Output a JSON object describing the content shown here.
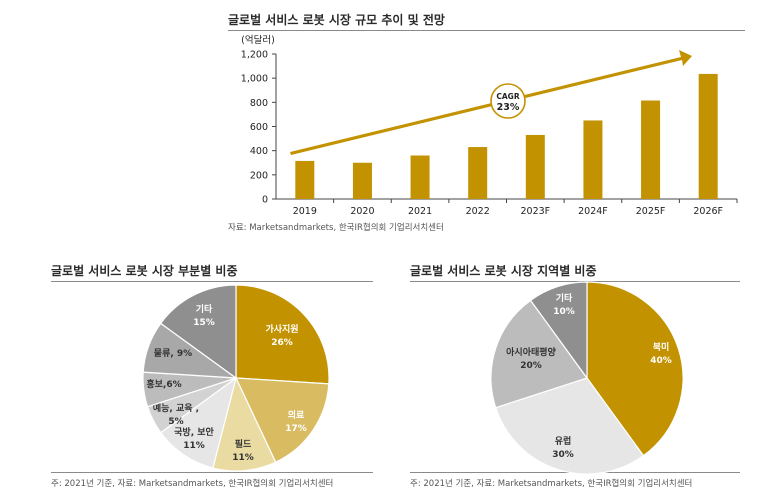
{
  "titles": {
    "top": "글로벌 서비스 로봇 시장 규모 추이 및 전망",
    "left": "글로벌 서비스 로봇 시장 부분별 비중",
    "right": "글로벌 서비스 로봇 시장 지역별 비중"
  },
  "sources": {
    "top": "자료: Marketsandmarkets, 한국IR협의회 기업리서치센터",
    "left": "주: 2021년 기준, 자료: Marketsandmarkets, 한국IR협의회 기업리서치센터",
    "right": "주: 2021년 기준, 자료: Marketsandmarkets, 한국IR협의회 기업리서치센터"
  },
  "colors": {
    "gold": "#c39200",
    "lightgold": "#d9bb61",
    "cream": "#eadba3",
    "lightgray": "#e6e6e6",
    "gray1": "#d2d2d2",
    "gray2": "#bcbcbc",
    "gray3": "#a8a8a8",
    "gray4": "#8f8f8f"
  },
  "chart_data": [
    {
      "type": "bar",
      "title": "글로벌 서비스 로봇 시장 규모 추이 및 전망",
      "ylabel": "(억달러)",
      "categories": [
        "2019",
        "2020",
        "2021",
        "2022",
        "2023F",
        "2024F",
        "2025F",
        "2026F"
      ],
      "values": [
        315,
        300,
        360,
        430,
        530,
        650,
        815,
        1035
      ],
      "ylim": [
        0,
        1200
      ],
      "yticks": [
        "0",
        "200",
        "400",
        "600",
        "800",
        "1,000",
        "1,200"
      ],
      "annotation": [
        "CAGR",
        "23%"
      ],
      "grid": false
    },
    {
      "type": "pie",
      "title": "글로벌 서비스 로봇 시장 부분별 비중",
      "slices": [
        {
          "label": "가사지원",
          "pct": "26%",
          "value": 26
        },
        {
          "label": "의료",
          "pct": "17%",
          "value": 17
        },
        {
          "label": "필드",
          "pct": "11%",
          "value": 11
        },
        {
          "label": "국방, 보안",
          "pct": "11%",
          "value": 11
        },
        {
          "label": "예능, 교육 ,",
          "pct": "5%",
          "value": 5
        },
        {
          "label": "홍보,6%",
          "pct": "",
          "value": 6
        },
        {
          "label": "물류, 9%",
          "pct": "",
          "value": 9
        },
        {
          "label": "기타",
          "pct": "15%",
          "value": 15
        }
      ]
    },
    {
      "type": "pie",
      "title": "글로벌 서비스 로봇 시장 지역별 비중",
      "slices": [
        {
          "label": "북미",
          "pct": "40%",
          "value": 40
        },
        {
          "label": "유럽",
          "pct": "30%",
          "value": 30
        },
        {
          "label": "아시아태평양",
          "pct": "20%",
          "value": 20
        },
        {
          "label": "기타",
          "pct": "10%",
          "value": 10
        }
      ]
    }
  ]
}
